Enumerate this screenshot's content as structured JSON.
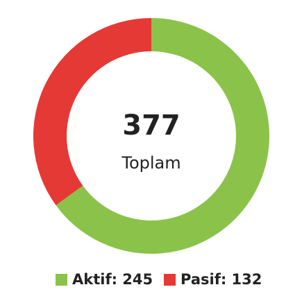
{
  "chart_data": {
    "type": "donut",
    "categories": [
      "Aktif: 245",
      "Pasif: 132"
    ],
    "values": [
      245,
      132
    ],
    "colors": [
      "#8bc34a",
      "#e53935"
    ],
    "total": 377,
    "total_label": "Toplam"
  }
}
